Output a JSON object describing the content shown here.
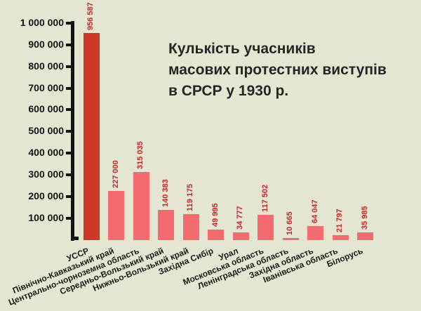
{
  "title": {
    "lines": [
      "Кулькість учасників",
      "масових протестних виступів",
      "в СРСР у 1930 р."
    ]
  },
  "colors": {
    "background": "#E5E5D1",
    "axis": "#121212",
    "bar_color": "#F26B6E",
    "highlight_color": "#CE3827",
    "value_label_color": "#C2272B",
    "category_label_color": "#1A1A1A",
    "title_color": "#262626"
  },
  "chart_data": {
    "type": "bar",
    "title": "Кулькість учасників масових протестних виступів в СРСР у 1930 р.",
    "xlabel": "",
    "ylabel": "",
    "ylim": [
      0,
      1000000
    ],
    "grid": false,
    "legend": "none",
    "highlight_index": 0,
    "categories": [
      "УССР",
      "Північно-Кавказький край",
      "Центрально-чорноземна область",
      "Середньо-Вользький край",
      "Нижньо-Вользький край",
      "Західна Сибір",
      "Урал",
      "Московська область",
      "Ленінградська область",
      "Західна область",
      "Іванівська область",
      "Білорусь"
    ],
    "values": [
      956587,
      227000,
      315035,
      140383,
      119175,
      49995,
      34777,
      117502,
      10665,
      64047,
      21797,
      35985
    ],
    "value_labels": [
      "956 587",
      "227 000",
      "315 035",
      "140 383",
      "119 175",
      "49 995",
      "34 777",
      "117 502",
      "10 665",
      "64 047",
      "21 797",
      "35 985"
    ],
    "y_ticks": [
      {
        "label": "1 000 000",
        "value": 1000000
      },
      {
        "label": "900 000",
        "value": 900000
      },
      {
        "label": "800 000",
        "value": 800000
      },
      {
        "label": "700 000",
        "value": 700000
      },
      {
        "label": "600 000",
        "value": 600000
      },
      {
        "label": "500 000",
        "value": 500000
      },
      {
        "label": "400 000",
        "value": 400000
      },
      {
        "label": "300 000",
        "value": 300000
      },
      {
        "label": "200 000",
        "value": 200000
      },
      {
        "label": "100 000",
        "value": 100000
      }
    ]
  }
}
